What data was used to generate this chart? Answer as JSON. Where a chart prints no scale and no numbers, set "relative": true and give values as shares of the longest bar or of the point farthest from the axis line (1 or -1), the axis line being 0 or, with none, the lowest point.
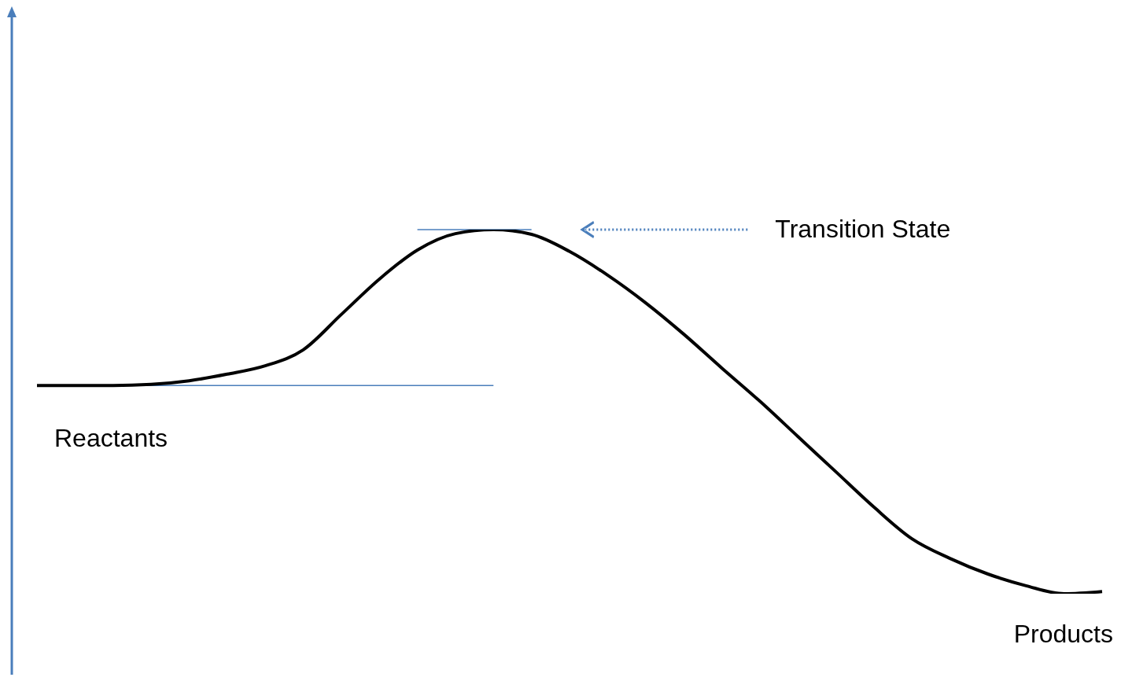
{
  "chart_data": {
    "type": "line",
    "relative": true,
    "categories": [
      null,
      null,
      null,
      null,
      null,
      null,
      null,
      null,
      null,
      null,
      null,
      null,
      null,
      null,
      null,
      null,
      null,
      null,
      null,
      null,
      null,
      null,
      null,
      null,
      null,
      null,
      null,
      null,
      null
    ],
    "series": [
      {
        "color": "#000000",
        "values": [
          0.572,
          0.572,
          0.572,
          0.575,
          0.585,
          0.603,
          0.626,
          0.67,
          0.767,
          0.864,
          0.944,
          0.989,
          1,
          0.987,
          0.94,
          0.875,
          0.799,
          0.713,
          0.62,
          0.529,
          0.432,
          0.335,
          0.238,
          0.151,
          0.097,
          0.054,
          0.022,
          0,
          0.006
        ]
      }
    ],
    "ref_lines": [
      {
        "axis": "y",
        "value": 0.572,
        "color": "#4a7ebb"
      },
      {
        "axis": "y",
        "value": 1,
        "color": "#4a7ebb"
      }
    ],
    "annotations": [
      "Reactants",
      "Transition State",
      "Products"
    ],
    "marker": "none",
    "line_style": "solid"
  }
}
